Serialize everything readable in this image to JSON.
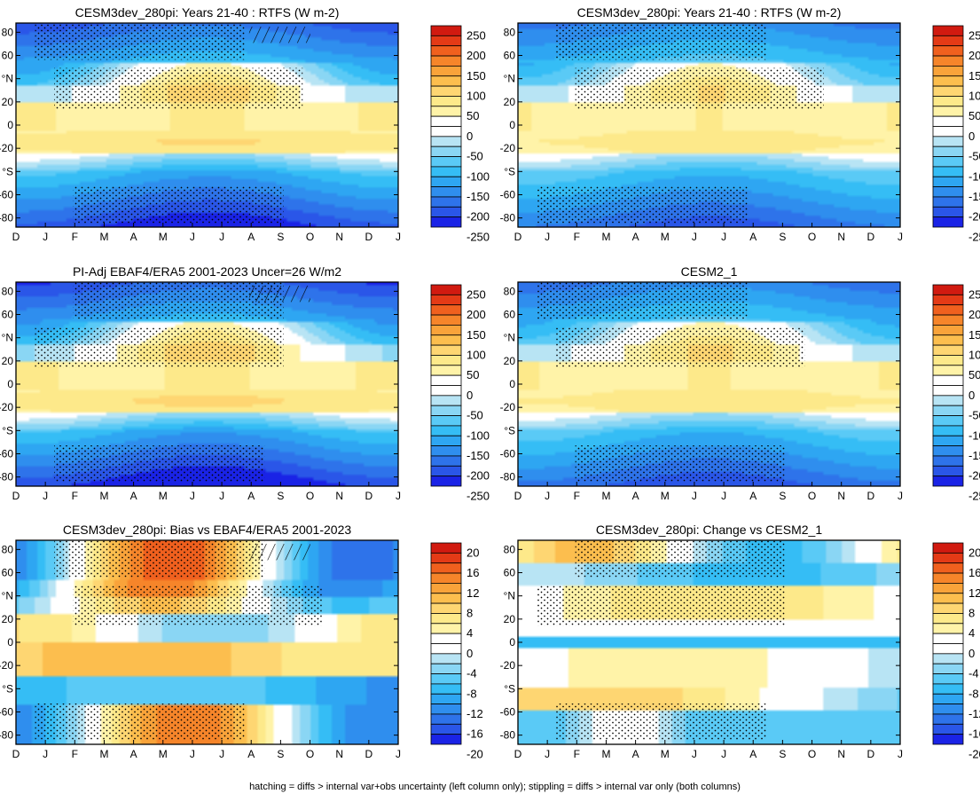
{
  "footnote": "hatching = diffs > internal var+obs uncertainty (left column only); stippling = diffs > internal var only (both columns)",
  "colormap": {
    "colors": [
      "#1a23e6",
      "#2a56e8",
      "#2e73ea",
      "#2f8eee",
      "#2ea6f2",
      "#35bdf5",
      "#5acaf6",
      "#8ad6f4",
      "#b8e4f4",
      "#ffffff",
      "#ffffff",
      "#fff3a8",
      "#fde98a",
      "#fed672",
      "#fcbe4e",
      "#f9a33a",
      "#f6852a",
      "#f0601e",
      "#e43a16",
      "#d11a10"
    ],
    "flux_levels": [
      "250",
      "200",
      "150",
      "100",
      "50",
      "0",
      "-50",
      "-100",
      "-150",
      "-200",
      "-250"
    ],
    "bias_levels": [
      "20",
      "16",
      "12",
      "8",
      "4",
      "0",
      "-4",
      "-8",
      "-12",
      "-16",
      "-20"
    ]
  },
  "chart_data": [
    {
      "type": "heatmap",
      "title": "CESM3dev_280pi: Years 21-40 : RTFS (W m-2)",
      "x": [
        "D",
        "J",
        "F",
        "M",
        "A",
        "M",
        "J",
        "J",
        "A",
        "S",
        "O",
        "N",
        "D",
        "J"
      ],
      "y_tick_labels": [
        "80",
        "60",
        "°N",
        "20",
        "0",
        "-20",
        "°S",
        "-60",
        "-80"
      ],
      "colorbar": "flux",
      "value_range": [
        -250,
        250
      ],
      "hatching": true,
      "stippling": true
    },
    {
      "type": "heatmap",
      "title": "CESM3dev_280pi: Years 21-40 : RTFS (W m-2)",
      "x": [
        "D",
        "J",
        "F",
        "M",
        "A",
        "M",
        "J",
        "J",
        "A",
        "S",
        "O",
        "N",
        "D",
        "J"
      ],
      "y_tick_labels": [
        "80",
        "60",
        "°N",
        "20",
        "0",
        "-20",
        "°S",
        "-60",
        "-80"
      ],
      "colorbar": "flux",
      "value_range": [
        -250,
        250
      ],
      "hatching": false,
      "stippling": true
    },
    {
      "type": "heatmap",
      "title": "PI-Adj EBAF4/ERA5 2001-2023 Uncer=26 W/m2",
      "x": [
        "D",
        "J",
        "F",
        "M",
        "A",
        "M",
        "J",
        "J",
        "A",
        "S",
        "O",
        "N",
        "D",
        "J"
      ],
      "y_tick_labels": [
        "80",
        "60",
        "°N",
        "20",
        "0",
        "-20",
        "°S",
        "-60",
        "-80"
      ],
      "colorbar": "flux",
      "value_range": [
        -250,
        250
      ],
      "hatching": true,
      "stippling": true
    },
    {
      "type": "heatmap",
      "title": "CESM2_1",
      "x": [
        "D",
        "J",
        "F",
        "M",
        "A",
        "M",
        "J",
        "J",
        "A",
        "S",
        "O",
        "N",
        "D",
        "J"
      ],
      "y_tick_labels": [
        "80",
        "60",
        "°N",
        "20",
        "0",
        "-20",
        "°S",
        "-60",
        "-80"
      ],
      "colorbar": "flux",
      "value_range": [
        -250,
        250
      ],
      "hatching": false,
      "stippling": true
    },
    {
      "type": "heatmap",
      "title": "CESM3dev_280pi: Bias vs EBAF4/ERA5 2001-2023",
      "x": [
        "D",
        "J",
        "F",
        "M",
        "A",
        "M",
        "J",
        "J",
        "A",
        "S",
        "O",
        "N",
        "D",
        "J"
      ],
      "y_tick_labels": [
        "80",
        "60",
        "°N",
        "20",
        "0",
        "-20",
        "°S",
        "-60",
        "-80"
      ],
      "colorbar": "bias",
      "value_range": [
        -20,
        20
      ],
      "hatching": true,
      "stippling": true
    },
    {
      "type": "heatmap",
      "title": "CESM3dev_280pi: Change vs CESM2_1",
      "x": [
        "D",
        "J",
        "F",
        "M",
        "A",
        "M",
        "J",
        "J",
        "A",
        "S",
        "O",
        "N",
        "D",
        "J"
      ],
      "y_tick_labels": [
        "80",
        "60",
        "°N",
        "20",
        "0",
        "-20",
        "°S",
        "-60",
        "-80"
      ],
      "colorbar": "bias",
      "value_range": [
        -20,
        20
      ],
      "hatching": false,
      "stippling": true
    }
  ]
}
